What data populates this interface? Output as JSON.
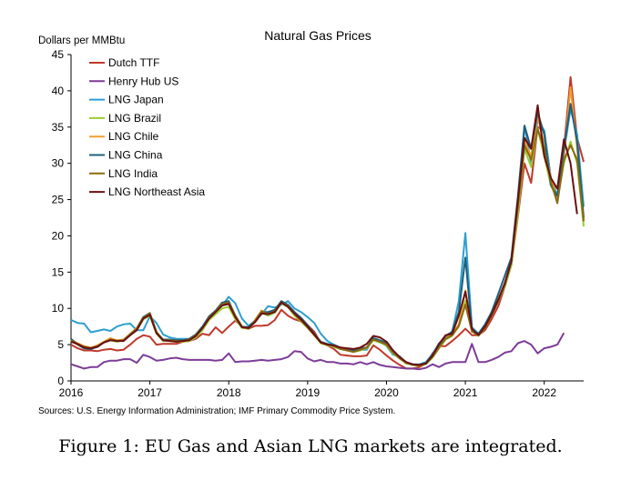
{
  "caption": "Figure 1: EU Gas and Asian LNG markets are integrated.",
  "chart_data": {
    "type": "line",
    "title": "Natural Gas Prices",
    "ylabel": "Dollars per MMBtu",
    "xlabel": "",
    "source": "Sources: U.S. Energy Information Administration; IMF Primary Commodity Price System.",
    "ylim": [
      0,
      45
    ],
    "yticks": [
      0,
      5,
      10,
      15,
      20,
      25,
      30,
      35,
      40,
      45
    ],
    "xlim": [
      2016,
      2022.5
    ],
    "xticks": [
      2016,
      2017,
      2018,
      2019,
      2020,
      2021,
      2022
    ],
    "grid": false,
    "legend_position": "top-left",
    "x_start": 2016,
    "x_step": 0.0833333,
    "series": [
      {
        "name": "Dutch TTF",
        "color": "#C0392B",
        "values": [
          5.0,
          4.5,
          4.2,
          4.2,
          4.1,
          4.3,
          4.4,
          4.2,
          4.3,
          5.0,
          5.8,
          6.3,
          6.1,
          5.0,
          5.1,
          5.1,
          5.1,
          5.4,
          5.5,
          5.8,
          6.5,
          6.3,
          7.4,
          6.6,
          7.5,
          8.3,
          7.5,
          7.2,
          7.6,
          7.6,
          7.7,
          8.4,
          9.8,
          9.0,
          8.5,
          8.2,
          7.7,
          6.8,
          5.2,
          4.9,
          4.4,
          3.6,
          3.5,
          3.4,
          3.4,
          3.5,
          4.9,
          4.3,
          3.5,
          2.8,
          2.2,
          1.7,
          1.7,
          1.9,
          2.4,
          3.8,
          4.8,
          4.8,
          5.5,
          6.3,
          7.2,
          6.3,
          6.3,
          7.0,
          8.5,
          10.3,
          13.0,
          16.0,
          22.7,
          30.0,
          27.3,
          35.0,
          34.5,
          28.0,
          25.5,
          32.0,
          41.9,
          33.5,
          30.2
        ]
      },
      {
        "name": "Henry Hub US",
        "color": "#7D3C98",
        "values": [
          2.3,
          2.0,
          1.7,
          1.9,
          1.9,
          2.6,
          2.8,
          2.8,
          3.0,
          3.0,
          2.5,
          3.6,
          3.3,
          2.8,
          2.9,
          3.1,
          3.2,
          3.0,
          2.9,
          2.9,
          2.9,
          2.9,
          2.8,
          2.9,
          3.8,
          2.6,
          2.7,
          2.7,
          2.8,
          2.9,
          2.8,
          2.9,
          3.0,
          3.3,
          4.1,
          4.0,
          3.1,
          2.7,
          2.9,
          2.6,
          2.6,
          2.4,
          2.4,
          2.3,
          2.6,
          2.3,
          2.6,
          2.2,
          2.0,
          1.9,
          1.8,
          1.7,
          1.7,
          1.6,
          1.8,
          2.3,
          1.9,
          2.4,
          2.6,
          2.6,
          2.6,
          5.1,
          2.6,
          2.6,
          2.9,
          3.3,
          3.9,
          4.1,
          5.2,
          5.5,
          5.0,
          3.8,
          4.5,
          4.7,
          5.0,
          6.6
        ]
      },
      {
        "name": "LNG Japan",
        "color": "#2E9FD0",
        "values": [
          8.4,
          8.0,
          7.9,
          6.7,
          6.9,
          7.1,
          6.9,
          7.5,
          7.8,
          7.9,
          7.0,
          7.0,
          8.9,
          8.0,
          6.4,
          6.0,
          5.8,
          5.8,
          5.8,
          6.4,
          7.3,
          8.9,
          9.6,
          10.4,
          11.6,
          10.7,
          8.6,
          7.6,
          8.3,
          9.2,
          10.3,
          10.1,
          10.5,
          11.0,
          10.0,
          9.5,
          8.8,
          8.0,
          6.5,
          5.5,
          5.0,
          4.6,
          4.4,
          4.2,
          4.3,
          4.3,
          5.8,
          5.5,
          4.8,
          3.6,
          3.4,
          2.5,
          2.3,
          2.3,
          2.6,
          3.7,
          5.2,
          6.0,
          6.8,
          11.0,
          20.4,
          7.4,
          6.5,
          7.5,
          9.0,
          11.0,
          13.0,
          16.0,
          24.0,
          35.2,
          30.0,
          36.0,
          34.5,
          28.0,
          25.5,
          31.5,
          37.5,
          34.0,
          24.0
        ]
      },
      {
        "name": "LNG Brazil",
        "color": "#9ACD32",
        "values": [
          5.5,
          5.0,
          4.8,
          4.6,
          4.8,
          5.3,
          5.6,
          5.4,
          5.6,
          6.3,
          7.0,
          8.5,
          9.0,
          6.5,
          5.5,
          5.5,
          5.4,
          5.4,
          5.5,
          6.0,
          7.0,
          8.4,
          9.2,
          10.0,
          10.2,
          8.5,
          7.3,
          7.2,
          8.2,
          9.4,
          9.0,
          9.4,
          10.7,
          10.2,
          9.0,
          8.2,
          7.3,
          6.3,
          5.2,
          4.9,
          4.7,
          4.4,
          4.2,
          4.0,
          4.2,
          4.5,
          5.6,
          5.3,
          4.9,
          3.8,
          3.1,
          2.4,
          2.2,
          2.1,
          2.3,
          3.2,
          4.5,
          5.7,
          6.2,
          7.5,
          11.0,
          7.0,
          6.2,
          7.3,
          9.0,
          11.0,
          13.0,
          16.0,
          23.0,
          32.0,
          29.5,
          34.8,
          31.0,
          27.0,
          25.0,
          30.0,
          33.0,
          30.0,
          21.3
        ]
      },
      {
        "name": "LNG Chile",
        "color": "#F0A030",
        "values": [
          5.7,
          5.2,
          4.8,
          4.6,
          4.9,
          5.4,
          5.9,
          5.6,
          5.7,
          6.5,
          7.3,
          8.8,
          9.4,
          6.8,
          5.6,
          5.6,
          5.5,
          5.6,
          5.7,
          6.3,
          7.3,
          8.8,
          9.6,
          10.5,
          10.7,
          9.0,
          7.5,
          7.2,
          8.4,
          9.7,
          9.3,
          9.7,
          11.0,
          10.4,
          9.3,
          8.3,
          7.5,
          6.3,
          5.3,
          5.0,
          4.8,
          4.5,
          4.3,
          4.1,
          4.3,
          4.6,
          5.8,
          5.5,
          5.0,
          3.9,
          3.2,
          2.5,
          2.2,
          2.2,
          2.4,
          3.4,
          4.7,
          5.9,
          6.4,
          7.8,
          12.5,
          7.2,
          6.3,
          7.4,
          9.2,
          11.3,
          13.3,
          16.5,
          24.0,
          33.0,
          31.0,
          36.5,
          32.5,
          28.0,
          25.0,
          31.0,
          40.5,
          32.0,
          22.0
        ]
      },
      {
        "name": "LNG China",
        "color": "#1F5F7A",
        "values": [
          5.8,
          5.0,
          4.5,
          4.4,
          4.7,
          5.3,
          5.7,
          5.5,
          5.6,
          6.4,
          7.2,
          8.8,
          9.3,
          6.7,
          5.7,
          5.7,
          5.6,
          5.6,
          5.8,
          6.4,
          7.5,
          8.9,
          9.7,
          10.8,
          11.0,
          9.0,
          7.5,
          7.4,
          8.3,
          9.5,
          9.5,
          9.8,
          11.0,
          10.5,
          9.5,
          8.7,
          7.7,
          6.5,
          5.4,
          5.1,
          4.9,
          4.5,
          4.3,
          4.2,
          4.5,
          4.6,
          5.9,
          5.6,
          5.2,
          4.0,
          3.3,
          2.5,
          2.2,
          2.2,
          2.5,
          3.6,
          5.0,
          6.2,
          6.8,
          9.5,
          17.0,
          7.0,
          6.5,
          7.8,
          9.5,
          12.0,
          14.5,
          17.0,
          25.5,
          35.2,
          32.0,
          37.0,
          34.0,
          27.0,
          25.5,
          32.0,
          38.2,
          33.0,
          22.5
        ]
      },
      {
        "name": "LNG India",
        "color": "#8B6914",
        "values": [
          5.6,
          5.0,
          4.7,
          4.5,
          4.8,
          5.3,
          5.7,
          5.5,
          5.6,
          6.4,
          7.2,
          8.7,
          9.2,
          6.7,
          5.6,
          5.6,
          5.5,
          5.5,
          5.7,
          6.3,
          7.3,
          8.7,
          9.6,
          10.6,
          10.8,
          9.0,
          7.5,
          7.2,
          8.3,
          9.6,
          9.2,
          9.6,
          10.8,
          10.3,
          9.2,
          8.3,
          7.4,
          6.3,
          5.3,
          5.0,
          4.8,
          4.4,
          4.2,
          4.0,
          4.3,
          4.6,
          5.7,
          5.4,
          5.0,
          3.9,
          3.1,
          2.5,
          2.2,
          2.1,
          2.4,
          3.3,
          4.6,
          5.8,
          6.3,
          7.6,
          10.5,
          6.8,
          6.3,
          7.3,
          9.0,
          11.0,
          13.2,
          16.5,
          24.0,
          32.5,
          30.5,
          34.7,
          32.0,
          27.5,
          24.5,
          30.5,
          32.5,
          30.5,
          22.0
        ]
      },
      {
        "name": "LNG Northeast Asia",
        "color": "#6B1010",
        "values": [
          5.4,
          5.1,
          4.6,
          4.5,
          4.7,
          5.3,
          5.6,
          5.5,
          5.5,
          6.3,
          7.0,
          8.6,
          9.1,
          6.6,
          5.6,
          5.5,
          5.4,
          5.5,
          5.6,
          6.2,
          7.3,
          8.6,
          9.5,
          10.4,
          10.6,
          8.8,
          7.4,
          7.3,
          8.1,
          9.3,
          9.2,
          9.5,
          10.8,
          10.2,
          9.3,
          8.5,
          7.5,
          6.4,
          5.3,
          5.0,
          4.9,
          4.6,
          4.5,
          4.4,
          4.6,
          5.1,
          6.2,
          6.0,
          5.4,
          4.2,
          3.3,
          2.6,
          2.3,
          2.2,
          2.4,
          3.5,
          5.1,
          6.3,
          6.5,
          9.0,
          12.3,
          7.2,
          6.3,
          7.5,
          9.2,
          11.2,
          13.5,
          16.5,
          25.0,
          33.5,
          32.0,
          38.0,
          31.0,
          28.0,
          26.5,
          33.3,
          30.0,
          23.0
        ]
      }
    ]
  }
}
